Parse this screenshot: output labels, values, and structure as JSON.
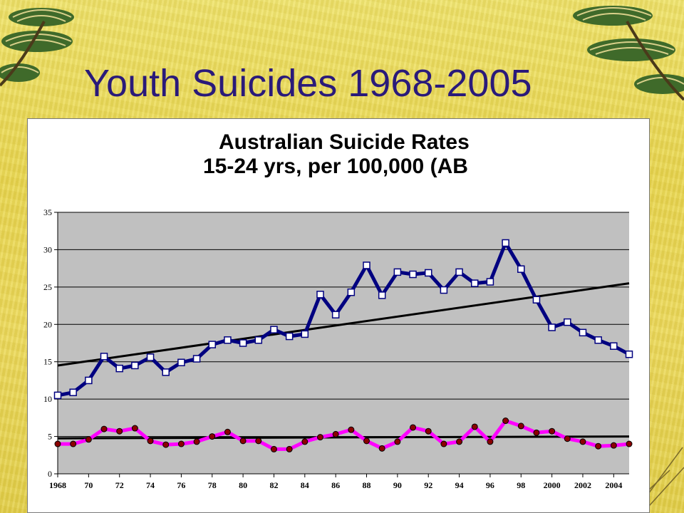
{
  "slide": {
    "title": "Youth Suicides 1968-2005",
    "colors": {
      "background": "#ecd95a",
      "title": "#2a1a7a"
    },
    "decorations": [
      "pine-branch-icon",
      "pine-branch-icon"
    ]
  },
  "chart_data": {
    "type": "line",
    "title": "Australian Suicide Rates",
    "subtitle": "15-24 yrs, per 100,000 (AB",
    "xlabel": "",
    "ylabel": "",
    "ylim": [
      0,
      35
    ],
    "yticks": [
      0,
      5,
      10,
      15,
      20,
      25,
      30,
      35
    ],
    "x": [
      1968,
      1969,
      1970,
      1971,
      1972,
      1973,
      1974,
      1975,
      1976,
      1977,
      1978,
      1979,
      1980,
      1981,
      1982,
      1983,
      1984,
      1985,
      1986,
      1987,
      1988,
      1989,
      1990,
      1991,
      1992,
      1993,
      1994,
      1995,
      1996,
      1997,
      1998,
      1999,
      2000,
      2001,
      2002,
      2003,
      2004,
      2005
    ],
    "xtick_labels": [
      "1968",
      "70",
      "72",
      "74",
      "76",
      "78",
      "80",
      "82",
      "84",
      "86",
      "88",
      "90",
      "92",
      "94",
      "96",
      "98",
      "2000",
      "2002",
      "2004"
    ],
    "xtick_years": [
      1968,
      1970,
      1972,
      1974,
      1976,
      1978,
      1980,
      1982,
      1984,
      1986,
      1988,
      1990,
      1992,
      1994,
      1996,
      1998,
      2000,
      2002,
      2004
    ],
    "grid": true,
    "plot_background": "#c0c0c0",
    "series": [
      {
        "color": "#000080",
        "marker": "square",
        "marker_fill": "#ffffff",
        "values": [
          10.5,
          10.9,
          12.5,
          15.7,
          14.1,
          14.5,
          15.6,
          13.6,
          14.9,
          15.4,
          17.3,
          17.9,
          17.5,
          17.9,
          19.3,
          18.4,
          18.7,
          24.0,
          21.3,
          24.3,
          27.9,
          23.9,
          27.0,
          26.7,
          26.9,
          24.6,
          27.0,
          25.5,
          25.7,
          30.9,
          27.4,
          23.3,
          19.6,
          20.3,
          18.9,
          17.9,
          17.1,
          16.0
        ]
      },
      {
        "color": "#ff00ff",
        "marker": "circle",
        "marker_fill": "#8b0000",
        "values": [
          4.0,
          4.0,
          4.6,
          6.0,
          5.7,
          6.1,
          4.4,
          3.9,
          4.0,
          4.3,
          5.0,
          5.6,
          4.4,
          4.4,
          3.3,
          3.3,
          4.3,
          4.9,
          5.3,
          5.9,
          4.4,
          3.4,
          4.3,
          6.2,
          5.7,
          4.0,
          4.3,
          6.3,
          4.3,
          7.1,
          6.4,
          5.5,
          5.7,
          4.7,
          4.3,
          3.7,
          3.8,
          4.0
        ]
      }
    ],
    "trendlines": [
      {
        "color": "#000000",
        "start": 14.5,
        "end": 25.5
      },
      {
        "color": "#000000",
        "start": 4.75,
        "end": 5.0
      }
    ]
  }
}
